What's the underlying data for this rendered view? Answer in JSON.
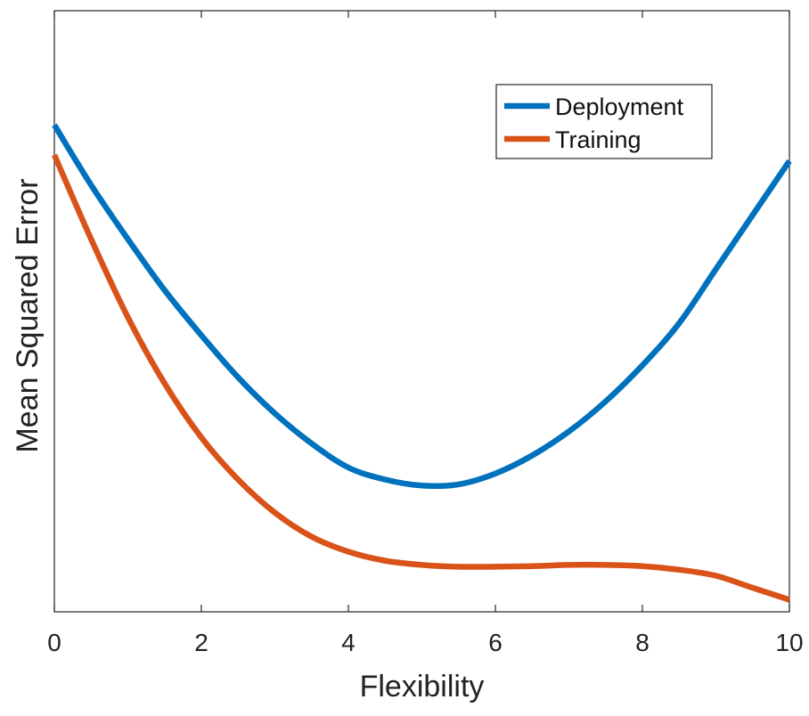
{
  "chart_data": {
    "type": "line",
    "title": "",
    "xlabel": "Flexibility",
    "ylabel": "Mean Squared Error",
    "xlim": [
      0,
      10
    ],
    "ylim": [
      0,
      1
    ],
    "xticks": [
      "0",
      "2",
      "4",
      "6",
      "8",
      "10"
    ],
    "yticks": [],
    "grid": false,
    "legend_position": "top-right",
    "series": [
      {
        "name": "Deployment",
        "color": "#0072BD",
        "x": [
          0,
          0.5,
          1,
          1.5,
          2,
          2.5,
          3,
          3.5,
          4,
          4.5,
          5,
          5.5,
          6,
          6.5,
          7,
          7.5,
          8,
          8.5,
          9,
          9.5,
          10
        ],
        "y": [
          0.81,
          0.71,
          0.62,
          0.535,
          0.46,
          0.39,
          0.33,
          0.28,
          0.24,
          0.22,
          0.21,
          0.212,
          0.23,
          0.26,
          0.3,
          0.35,
          0.41,
          0.48,
          0.57,
          0.66,
          0.75
        ]
      },
      {
        "name": "Training",
        "color": "#D95319",
        "x": [
          0,
          0.5,
          1,
          1.5,
          2,
          2.5,
          3,
          3.5,
          4,
          4.5,
          5,
          5.5,
          6,
          6.5,
          7,
          7.5,
          8,
          8.5,
          9,
          9.5,
          10
        ],
        "y": [
          0.76,
          0.62,
          0.49,
          0.38,
          0.29,
          0.22,
          0.165,
          0.125,
          0.1,
          0.085,
          0.078,
          0.075,
          0.075,
          0.076,
          0.078,
          0.078,
          0.076,
          0.07,
          0.06,
          0.04,
          0.02
        ]
      }
    ]
  }
}
